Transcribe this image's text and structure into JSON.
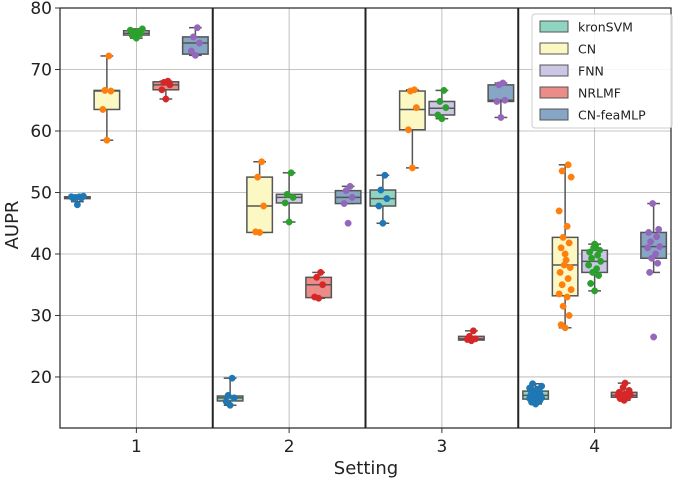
{
  "chart_data": {
    "type": "boxplot",
    "xlabel": "Setting",
    "ylabel": "AUPR",
    "ylim": [
      11.7,
      80
    ],
    "yticks": [
      20,
      30,
      40,
      50,
      60,
      70,
      80
    ],
    "categories": [
      "1",
      "2",
      "3",
      "4"
    ],
    "grid": true,
    "legend_position": "top-right",
    "series": [
      {
        "name": "kronSVM",
        "box_color": "#8fd3c1",
        "point_color": "#1f77b4",
        "boxes": [
          {
            "q1": 49.0,
            "median": 49.2,
            "q3": 49.3,
            "whislo": 48.5,
            "whishi": 49.4,
            "points": [
              48.0,
              49.0,
              49.1,
              49.2,
              49.3,
              49.3,
              49.4
            ]
          },
          {
            "q1": 16.1,
            "median": 16.6,
            "q3": 16.9,
            "whislo": 15.4,
            "whishi": 19.8,
            "points": [
              15.4,
              16.0,
              16.6,
              17.0,
              19.8
            ]
          },
          {
            "q1": 47.8,
            "median": 49.0,
            "q3": 50.4,
            "whislo": 45.0,
            "whishi": 52.8,
            "points": [
              45.0,
              47.8,
              49.0,
              50.4,
              52.8
            ]
          },
          {
            "q1": 16.4,
            "median": 17.0,
            "q3": 17.7,
            "whislo": 15.6,
            "whishi": 18.9,
            "points": [
              15.6,
              15.9,
              16.1,
              16.3,
              16.4,
              16.5,
              16.6,
              16.8,
              16.9,
              17.0,
              17.0,
              17.1,
              17.2,
              17.3,
              17.5,
              17.6,
              17.8,
              18.0,
              18.2,
              18.5,
              18.9
            ]
          }
        ]
      },
      {
        "name": "CN",
        "box_color": "#fbf8c4",
        "point_color": "#ff7f0e",
        "boxes": [
          {
            "q1": 63.5,
            "median": 66.5,
            "q3": 66.6,
            "whislo": 58.5,
            "whishi": 72.2,
            "points": [
              58.5,
              63.5,
              66.5,
              66.6,
              72.2
            ]
          },
          {
            "q1": 43.5,
            "median": 47.8,
            "q3": 52.5,
            "whislo": 43.5,
            "whishi": 55.0,
            "points": [
              43.5,
              43.6,
              47.8,
              52.5,
              55.0
            ]
          },
          {
            "q1": 60.2,
            "median": 63.5,
            "q3": 66.5,
            "whislo": 54.0,
            "whishi": 66.7,
            "points": [
              54.0,
              60.2,
              63.8,
              66.5,
              66.7
            ]
          },
          {
            "q1": 33.2,
            "median": 38.2,
            "q3": 42.7,
            "whislo": 28.0,
            "whishi": 54.5,
            "points": [
              28.0,
              28.5,
              30.0,
              31.5,
              33.0,
              33.5,
              34.2,
              35.0,
              36.0,
              37.0,
              37.8,
              38.2,
              39.0,
              40.0,
              41.0,
              41.8,
              42.7,
              44.5,
              47.0,
              52.5,
              53.5,
              54.5
            ]
          }
        ]
      },
      {
        "name": "FNN",
        "box_color": "#cac6e3",
        "point_color": "#2ca02c",
        "boxes": [
          {
            "q1": 75.6,
            "median": 75.9,
            "q3": 76.3,
            "whislo": 75.1,
            "whishi": 76.6,
            "points": [
              75.1,
              75.5,
              75.8,
              76.0,
              76.2,
              76.4,
              76.6
            ]
          },
          {
            "q1": 48.3,
            "median": 49.2,
            "q3": 49.7,
            "whislo": 45.2,
            "whishi": 53.2,
            "points": [
              45.2,
              48.3,
              49.2,
              49.7,
              53.2
            ]
          },
          {
            "q1": 62.6,
            "median": 63.7,
            "q3": 64.8,
            "whislo": 62.0,
            "whishi": 66.6,
            "points": [
              62.0,
              62.6,
              63.8,
              64.8,
              66.6
            ]
          },
          {
            "q1": 37.0,
            "median": 38.8,
            "q3": 40.6,
            "whislo": 34.0,
            "whishi": 41.6,
            "points": [
              34.0,
              35.2,
              36.5,
              37.0,
              37.6,
              38.2,
              38.8,
              39.3,
              39.8,
              40.3,
              40.6,
              41.0,
              41.4,
              41.6
            ]
          }
        ]
      },
      {
        "name": "NRLMF",
        "box_color": "#ec8c88",
        "point_color": "#d62728",
        "boxes": [
          {
            "q1": 66.7,
            "median": 67.5,
            "q3": 68.0,
            "whislo": 65.2,
            "whishi": 68.1,
            "points": [
              65.2,
              66.7,
              67.5,
              67.9,
              68.1
            ]
          },
          {
            "q1": 32.9,
            "median": 35.0,
            "q3": 36.2,
            "whislo": 32.8,
            "whishi": 37.0,
            "points": [
              32.8,
              33.0,
              35.0,
              36.2,
              37.0
            ]
          },
          {
            "q1": 26.0,
            "median": 26.2,
            "q3": 26.6,
            "whislo": 25.9,
            "whishi": 27.5,
            "points": [
              25.9,
              26.1,
              26.2,
              26.6,
              27.5
            ]
          },
          {
            "q1": 16.7,
            "median": 17.0,
            "q3": 17.5,
            "whislo": 16.2,
            "whishi": 19.0,
            "points": [
              16.2,
              16.5,
              16.7,
              16.8,
              16.9,
              17.0,
              17.1,
              17.2,
              17.3,
              17.5,
              17.8,
              18.3,
              19.0
            ]
          }
        ]
      },
      {
        "name": "CN-feaMLP",
        "box_color": "#87a5c4",
        "point_color": "#9467bd",
        "boxes": [
          {
            "q1": 72.5,
            "median": 74.3,
            "q3": 75.3,
            "whislo": 72.3,
            "whishi": 76.8,
            "points": [
              72.3,
              73.0,
              74.3,
              75.3,
              76.8
            ]
          },
          {
            "q1": 48.2,
            "median": 49.2,
            "q3": 50.3,
            "whislo": 48.2,
            "whishi": 51.0,
            "points": [
              45.0,
              48.2,
              49.2,
              50.3,
              51.0
            ]
          },
          {
            "q1": 64.8,
            "median": 65.0,
            "q3": 67.5,
            "whislo": 62.2,
            "whishi": 67.8,
            "points": [
              62.2,
              64.8,
              65.0,
              67.5,
              67.8
            ]
          },
          {
            "q1": 39.3,
            "median": 41.2,
            "q3": 43.5,
            "whislo": 37.0,
            "whishi": 48.2,
            "points": [
              26.5,
              37.0,
              38.5,
              39.3,
              40.0,
              41.0,
              41.2,
              42.0,
              42.8,
              43.5,
              44.0,
              48.2
            ]
          }
        ]
      }
    ]
  }
}
